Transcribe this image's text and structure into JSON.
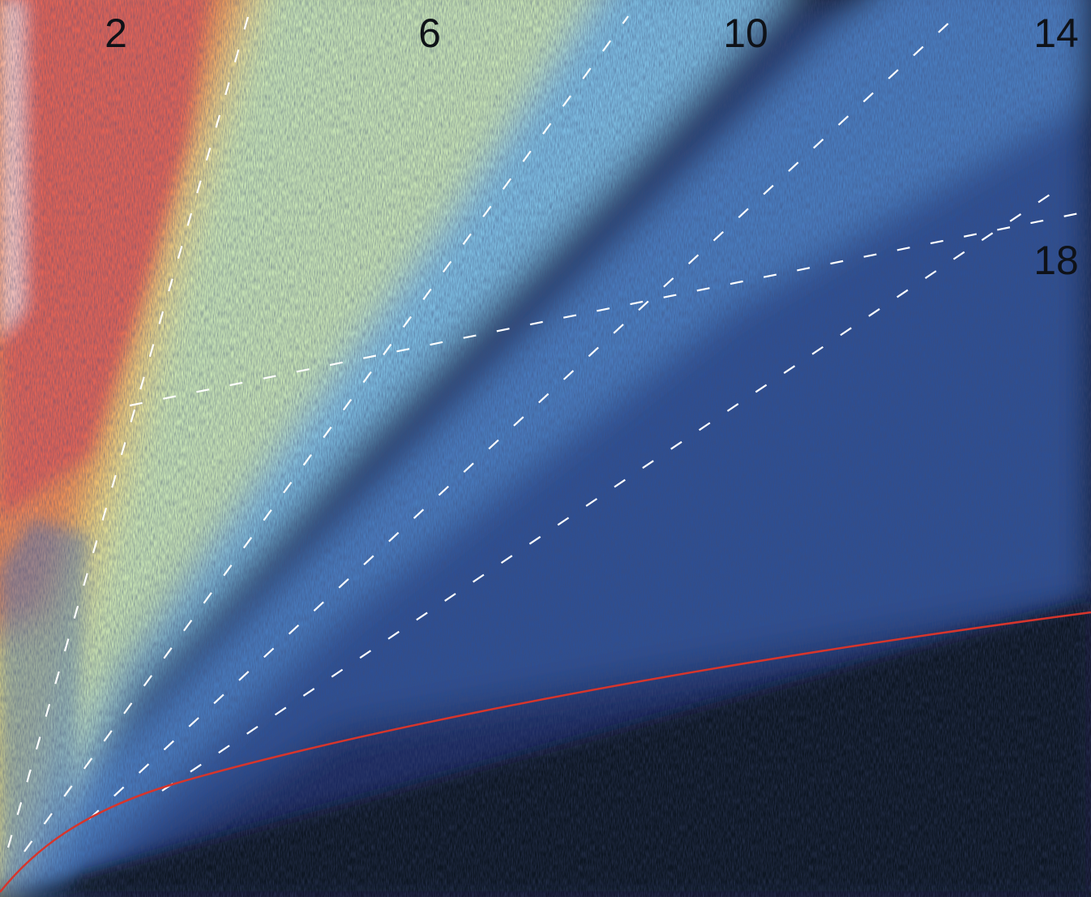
{
  "chart_data": {
    "type": "heatmap",
    "title": "",
    "xlabel": "",
    "ylabel": "",
    "colormap": {
      "stops": [
        "#0d1224",
        "#1c2c5e",
        "#2e4f93",
        "#4a7cbe",
        "#7bbbe0",
        "#c7e3b4",
        "#f3e27a",
        "#ef8a55",
        "#e26357",
        "#fbeaea"
      ]
    },
    "series": [
      {
        "label": "2"
      },
      {
        "label": "6"
      },
      {
        "label": "10"
      },
      {
        "label": "14"
      },
      {
        "label": "18"
      }
    ],
    "boundary_curve_color": "#d6352c",
    "contour_line_color": "#ffffff"
  }
}
